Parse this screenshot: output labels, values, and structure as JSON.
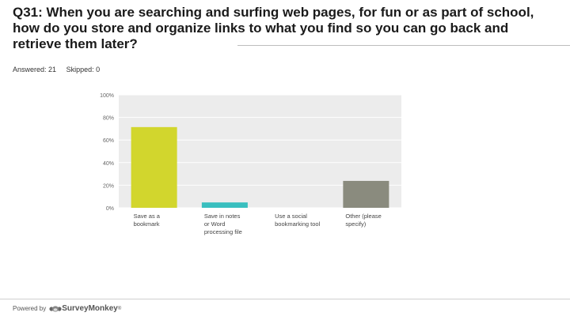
{
  "question": {
    "title": "Q31: When you are searching and surfing web pages, for fun or as part of school, how do you store and organize links to what you find so you can go back and retrieve them later?"
  },
  "stats": {
    "answered": "Answered: 21",
    "skipped": "Skipped: 0"
  },
  "footer": {
    "powered_by": "Powered by",
    "brand": "SurveyMonkey",
    "registered": "®",
    "logo_icon": "surveymonkey-logo-icon"
  },
  "colors": {
    "bar_1": "#d2d62d",
    "bar_2": "#39bfbf",
    "bar_3": "#d2d62d",
    "bar_4": "#8a8b7e",
    "plot_bg": "#ececec",
    "grid": "#ffffff"
  },
  "chart_data": {
    "type": "bar",
    "categories": [
      "Save as a bookmark",
      "Save in notes or Word processing file",
      "Use a social bookmarking tool",
      "Other (please specify)"
    ],
    "category_lines": [
      [
        "Save as a",
        "bookmark"
      ],
      [
        "Save in notes",
        "or Word",
        "processing file"
      ],
      [
        "Use a social",
        "bookmarking tool"
      ],
      [
        "Other (please",
        "specify)"
      ]
    ],
    "values": [
      71.43,
      4.76,
      0,
      23.81
    ],
    "ylim": [
      0,
      100
    ],
    "yticks": [
      0,
      20,
      40,
      60,
      80,
      100
    ],
    "ytick_labels": [
      "0%",
      "20%",
      "40%",
      "60%",
      "80%",
      "100%"
    ],
    "title": "",
    "xlabel": "",
    "ylabel": "",
    "grid": true
  }
}
